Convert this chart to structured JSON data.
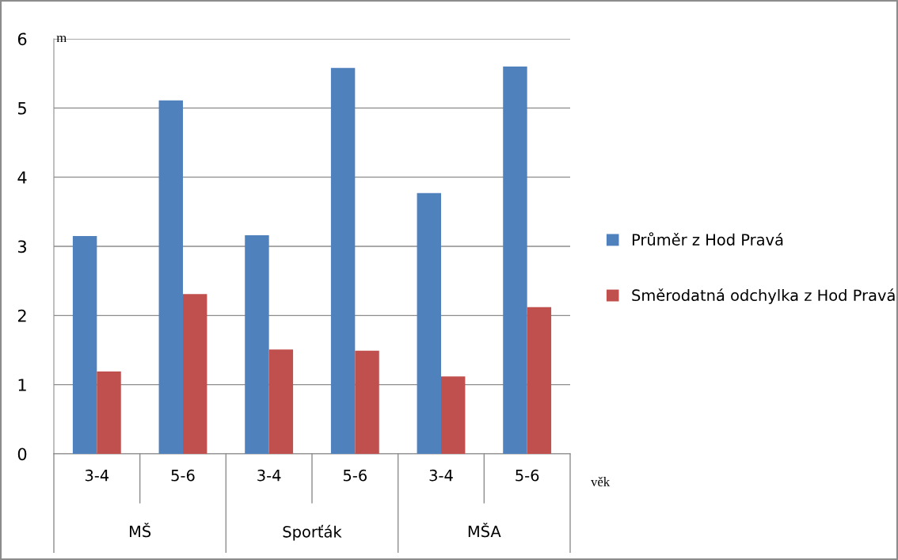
{
  "chart_data": {
    "type": "bar",
    "categories": [
      "3-4",
      "5-6",
      "3-4",
      "5-6",
      "3-4",
      "5-6"
    ],
    "annotations": [
      "MŠ",
      "Sporťák",
      "MŠA"
    ],
    "ylabel": "m",
    "xlabel": "věk",
    "series": [
      {
        "name": "Průměr z Hod Pravá",
        "color": "#4f81bd",
        "values": [
          3.15,
          5.11,
          3.16,
          5.58,
          3.77,
          5.6
        ]
      },
      {
        "name": "Směrodatná odchylka z Hod Pravá",
        "color": "#c0504d",
        "values": [
          1.19,
          2.31,
          1.51,
          1.49,
          1.12,
          2.12
        ]
      }
    ],
    "ylim": [
      0,
      6
    ],
    "yticks": [
      0,
      1,
      2,
      3,
      4,
      5,
      6
    ],
    "grid": "y",
    "legend": "right"
  }
}
